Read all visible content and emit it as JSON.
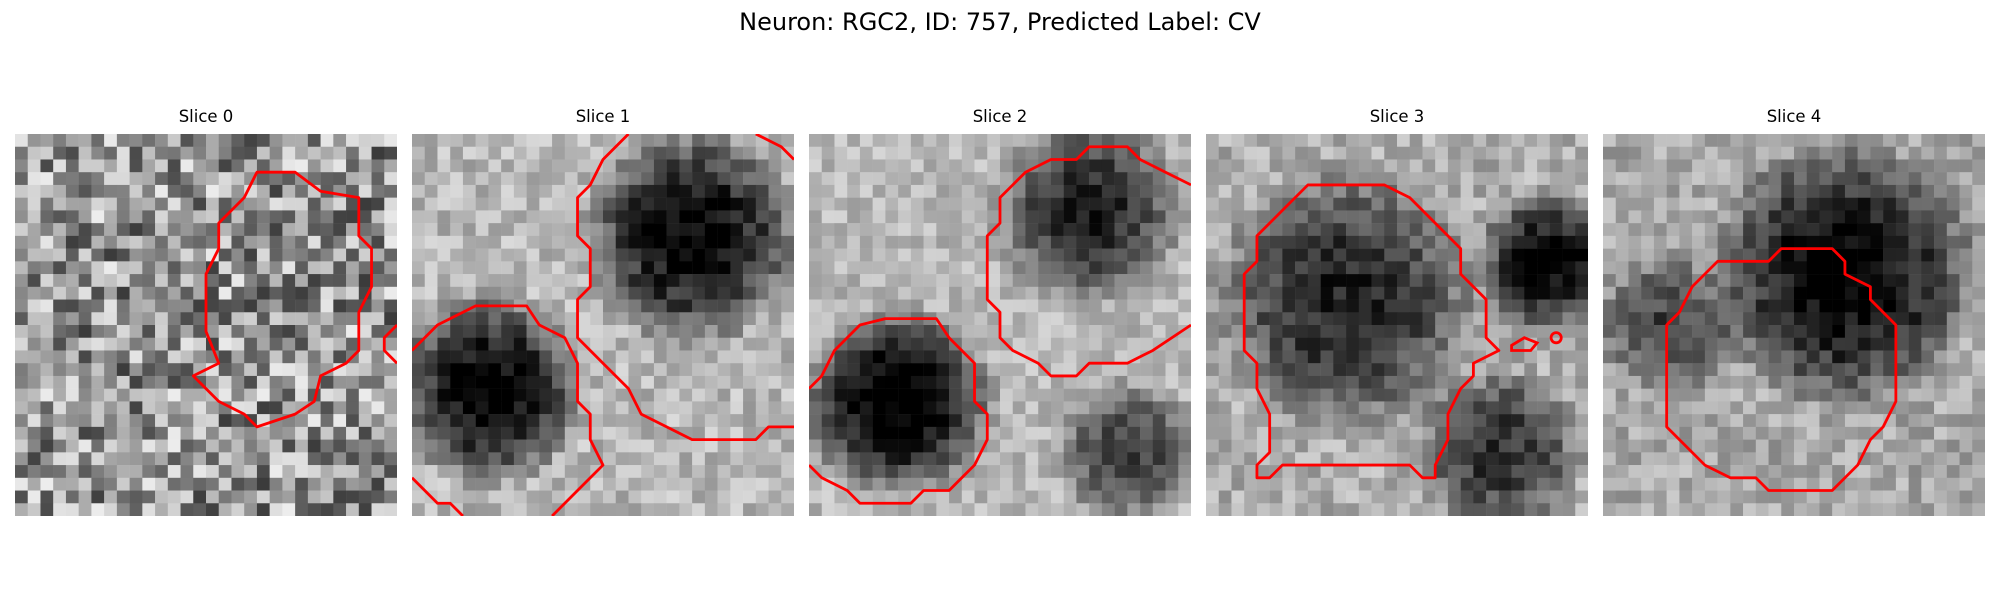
{
  "figure": {
    "title": "Neuron: RGC2, ID: 757, Predicted Label: CV"
  },
  "panels": [
    {
      "title": "Slice 0",
      "contour_color": "#ff0000"
    },
    {
      "title": "Slice 1",
      "contour_color": "#ff0000"
    },
    {
      "title": "Slice 2",
      "contour_color": "#ff0000"
    },
    {
      "title": "Slice 3",
      "contour_color": "#ff0000"
    },
    {
      "title": "Slice 4",
      "contour_color": "#ff0000"
    }
  ]
}
